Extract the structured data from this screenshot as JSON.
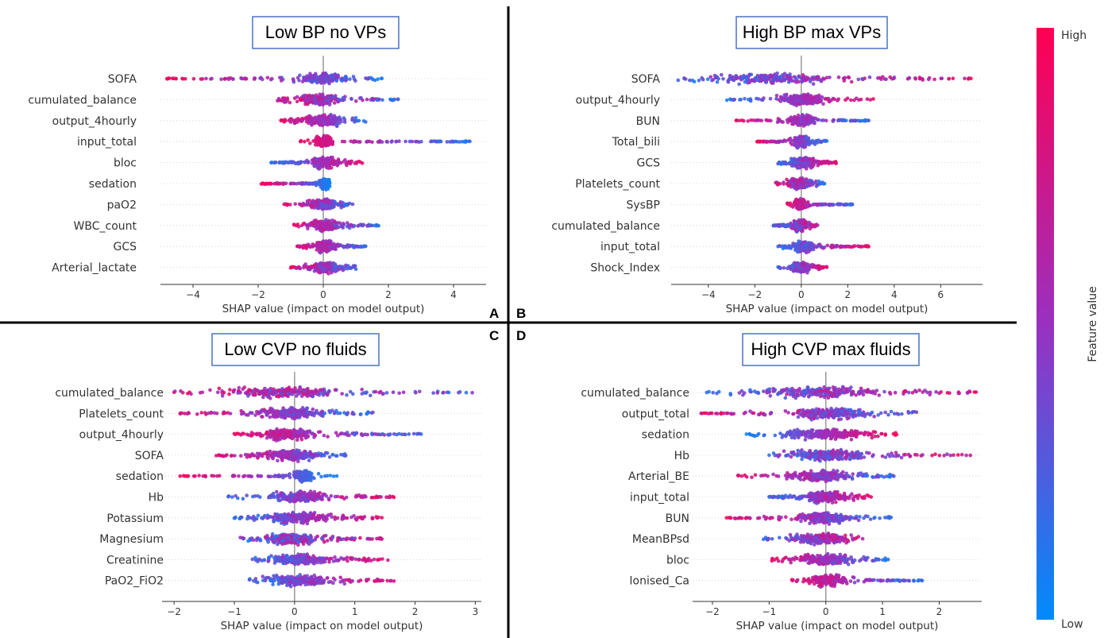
{
  "panels_letters": [
    "A",
    "B",
    "C",
    "D"
  ],
  "colorbar": {
    "high_label": "High",
    "low_label": "Low",
    "title": "Feature value",
    "color_high": "#ff0052",
    "color_low": "#008bfb"
  },
  "chart_data": [
    {
      "type": "scatter",
      "subtype": "shap-beeswarm",
      "title": "Low BP no VPs",
      "xlabel": "SHAP value (impact on model output)",
      "xlim": [
        -5.0,
        5.0
      ],
      "xticks": [
        -4,
        -2,
        0,
        2,
        4
      ],
      "features": [
        {
          "name": "SOFA",
          "min": -4.8,
          "max": 1.8,
          "dense": [
            -0.8,
            0.8
          ],
          "low_side": "right",
          "mix": 0.35
        },
        {
          "name": "cumulated_balance",
          "min": -1.4,
          "max": 2.3,
          "dense": [
            -0.8,
            0.6
          ],
          "low_side": "right",
          "mix": 0.5
        },
        {
          "name": "output_4hourly",
          "min": -1.3,
          "max": 1.3,
          "dense": [
            -0.6,
            0.7
          ],
          "low_side": "right",
          "mix": 0.3
        },
        {
          "name": "input_total",
          "min": -0.7,
          "max": 4.5,
          "dense": [
            -0.3,
            0.3
          ],
          "low_side": "right",
          "mix": 0.2
        },
        {
          "name": "bloc",
          "min": -1.6,
          "max": 1.2,
          "dense": [
            -0.4,
            0.5
          ],
          "low_side": "left",
          "mix": 0.3
        },
        {
          "name": "sedation",
          "min": -1.9,
          "max": 0.2,
          "dense": [
            -0.1,
            0.2
          ],
          "low_side": "right",
          "mix": 0.1
        },
        {
          "name": "paO2",
          "min": -1.2,
          "max": 0.9,
          "dense": [
            -0.4,
            0.4
          ],
          "low_side": "right",
          "mix": 0.4
        },
        {
          "name": "WBC_count",
          "min": -0.9,
          "max": 1.7,
          "dense": [
            -0.4,
            0.5
          ],
          "low_side": "right",
          "mix": 0.4
        },
        {
          "name": "GCS",
          "min": -0.8,
          "max": 1.3,
          "dense": [
            -0.3,
            0.4
          ],
          "low_side": "right",
          "mix": 0.3
        },
        {
          "name": "Arterial_lactate",
          "min": -1.0,
          "max": 1.0,
          "dense": [
            -0.4,
            0.5
          ],
          "low_side": "right",
          "mix": 0.4
        }
      ]
    },
    {
      "type": "scatter",
      "subtype": "shap-beeswarm",
      "title": "High BP max VPs",
      "xlabel": "SHAP value (impact on model output)",
      "xlim": [
        -5.6,
        7.8
      ],
      "xticks": [
        -4,
        -2,
        0,
        2,
        4,
        6
      ],
      "features": [
        {
          "name": "SOFA",
          "min": -5.3,
          "max": 7.3,
          "dense": [
            -4.0,
            1.5
          ],
          "low_side": "left",
          "mix": 0.45
        },
        {
          "name": "output_4hourly",
          "min": -3.2,
          "max": 3.1,
          "dense": [
            -1.0,
            1.0
          ],
          "low_side": "left",
          "mix": 0.3
        },
        {
          "name": "BUN",
          "min": -2.8,
          "max": 2.9,
          "dense": [
            -0.6,
            0.6
          ],
          "low_side": "right",
          "mix": 0.3
        },
        {
          "name": "Total_bili",
          "min": -1.9,
          "max": 1.1,
          "dense": [
            -0.4,
            0.4
          ],
          "low_side": "right",
          "mix": 0.3
        },
        {
          "name": "GCS",
          "min": -1.0,
          "max": 1.5,
          "dense": [
            -0.4,
            0.6
          ],
          "low_side": "left",
          "mix": 0.3
        },
        {
          "name": "Platelets_count",
          "min": -1.1,
          "max": 1.0,
          "dense": [
            -0.6,
            0.4
          ],
          "low_side": "right",
          "mix": 0.5
        },
        {
          "name": "SysBP",
          "min": -0.6,
          "max": 2.2,
          "dense": [
            -0.3,
            0.2
          ],
          "low_side": "right",
          "mix": 0.3
        },
        {
          "name": "cumulated_balance",
          "min": -1.2,
          "max": 0.7,
          "dense": [
            -0.4,
            0.3
          ],
          "low_side": "left",
          "mix": 0.5
        },
        {
          "name": "input_total",
          "min": -1.0,
          "max": 2.9,
          "dense": [
            -0.4,
            0.6
          ],
          "low_side": "left",
          "mix": 0.3
        },
        {
          "name": "Shock_Index",
          "min": -1.0,
          "max": 1.1,
          "dense": [
            -0.4,
            0.4
          ],
          "low_side": "left",
          "mix": 0.4
        }
      ]
    },
    {
      "type": "scatter",
      "subtype": "shap-beeswarm",
      "title": "Low CVP no fluids",
      "xlabel": "SHAP value (impact on model output)",
      "xlim": [
        -2.2,
        3.1
      ],
      "xticks": [
        -2,
        -1,
        0,
        1,
        2,
        3
      ],
      "features": [
        {
          "name": "cumulated_balance",
          "min": -2.0,
          "max": 2.95,
          "dense": [
            -1.2,
            0.8
          ],
          "low_side": "right",
          "mix": 0.55
        },
        {
          "name": "Platelets_count",
          "min": -1.9,
          "max": 1.3,
          "dense": [
            -0.7,
            0.5
          ],
          "low_side": "right",
          "mix": 0.35
        },
        {
          "name": "output_4hourly",
          "min": -1.0,
          "max": 2.1,
          "dense": [
            -0.6,
            0.4
          ],
          "low_side": "right",
          "mix": 0.35
        },
        {
          "name": "SOFA",
          "min": -1.3,
          "max": 0.85,
          "dense": [
            -0.5,
            0.4
          ],
          "low_side": "right",
          "mix": 0.35
        },
        {
          "name": "sedation",
          "min": -1.9,
          "max": 0.7,
          "dense": [
            0.0,
            0.3
          ],
          "low_side": "right",
          "mix": 0.1
        },
        {
          "name": "Hb",
          "min": -1.1,
          "max": 1.65,
          "dense": [
            -0.5,
            0.6
          ],
          "low_side": "left",
          "mix": 0.35
        },
        {
          "name": "Potassium",
          "min": -1.0,
          "max": 1.45,
          "dense": [
            -0.5,
            0.6
          ],
          "low_side": "left",
          "mix": 0.35
        },
        {
          "name": "Magnesium",
          "min": -0.9,
          "max": 1.45,
          "dense": [
            -0.5,
            0.4
          ],
          "low_side": "left",
          "mix": 0.6
        },
        {
          "name": "Creatinine",
          "min": -0.7,
          "max": 1.55,
          "dense": [
            -0.5,
            0.6
          ],
          "low_side": "left",
          "mix": 0.35
        },
        {
          "name": "PaO2_FiO2",
          "min": -0.75,
          "max": 1.65,
          "dense": [
            -0.5,
            0.6
          ],
          "low_side": "left",
          "mix": 0.35
        }
      ]
    },
    {
      "type": "scatter",
      "subtype": "shap-beeswarm",
      "title": "High CVP max fluids",
      "xlabel": "SHAP value (impact on model output)",
      "xlim": [
        -2.35,
        2.75
      ],
      "xticks": [
        -2,
        -1,
        0,
        1,
        2
      ],
      "features": [
        {
          "name": "cumulated_balance",
          "min": -2.1,
          "max": 2.65,
          "dense": [
            -1.3,
            1.0
          ],
          "low_side": "left",
          "mix": 0.5
        },
        {
          "name": "output_total",
          "min": -2.2,
          "max": 1.6,
          "dense": [
            -0.7,
            0.8
          ],
          "low_side": "right",
          "mix": 0.4
        },
        {
          "name": "sedation",
          "min": -1.4,
          "max": 1.25,
          "dense": [
            -0.7,
            0.7
          ],
          "low_side": "left",
          "mix": 0.1
        },
        {
          "name": "Hb",
          "min": -1.0,
          "max": 2.55,
          "dense": [
            -0.7,
            0.8
          ],
          "low_side": "left",
          "mix": 0.5
        },
        {
          "name": "Arterial_BE",
          "min": -1.55,
          "max": 1.2,
          "dense": [
            -0.7,
            0.5
          ],
          "low_side": "right",
          "mix": 0.35
        },
        {
          "name": "input_total",
          "min": -1.0,
          "max": 0.8,
          "dense": [
            -0.4,
            0.4
          ],
          "low_side": "left",
          "mix": 0.35
        },
        {
          "name": "BUN",
          "min": -1.75,
          "max": 1.15,
          "dense": [
            -0.5,
            0.4
          ],
          "low_side": "right",
          "mix": 0.3
        },
        {
          "name": "MeanBPsd",
          "min": -1.1,
          "max": 0.65,
          "dense": [
            -0.6,
            0.4
          ],
          "low_side": "left",
          "mix": 0.4
        },
        {
          "name": "bloc",
          "min": -0.95,
          "max": 1.1,
          "dense": [
            -0.5,
            0.5
          ],
          "low_side": "right",
          "mix": 0.3
        },
        {
          "name": "Ionised_Ca",
          "min": -0.6,
          "max": 1.7,
          "dense": [
            -0.3,
            0.4
          ],
          "low_side": "right",
          "mix": 0.3
        }
      ]
    }
  ]
}
